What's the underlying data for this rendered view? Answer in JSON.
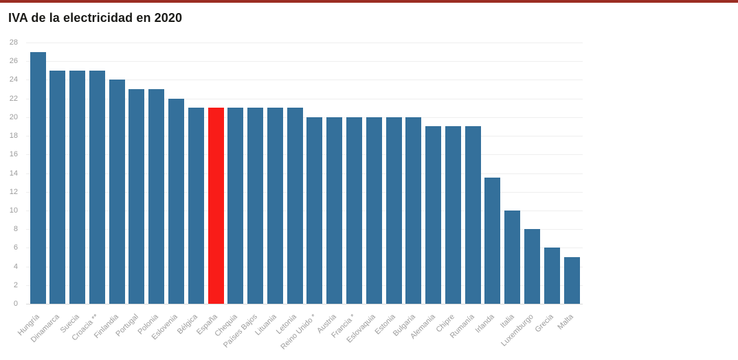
{
  "page": {
    "title": "IVA de la electricidad en 2020"
  },
  "colors": {
    "top_border": "#9b2d23",
    "bar": "#34709b",
    "highlight_bar": "#f91c18",
    "gridline": "#eeeeee",
    "zero_line": "#d9d9d9",
    "axis_label": "#9b9b9b",
    "title_text": "#1a1a17",
    "background": "#ffffff"
  },
  "chart_data": {
    "type": "bar",
    "title": "IVA de la electricidad en 2020",
    "xlabel": "",
    "ylabel": "",
    "ylim": [
      0,
      28
    ],
    "ytick_step": 2,
    "grid": "horizontal",
    "legend": "none",
    "highlighted_category": "España",
    "categories": [
      "Hungría",
      "Dinamarca",
      "Suecia",
      "Croacia **",
      "Finlandia",
      "Portugal",
      "Polonia",
      "Eslovenia",
      "Bélgica",
      "España",
      "Chequia",
      "Países Bajos",
      "Lituania",
      "Letonia",
      "Reino Unido *",
      "Austria",
      "Francia *",
      "Eslovaquia",
      "Estonia",
      "Bulgaria",
      "Alemania",
      "Chipre",
      "Rumanía",
      "Irlanda",
      "Italia",
      "Luxemburgo",
      "Grecia",
      "Malta"
    ],
    "values": [
      27,
      25,
      25,
      25,
      24,
      23,
      23,
      22,
      21,
      21,
      21,
      21,
      21,
      21,
      20,
      20,
      20,
      20,
      20,
      20,
      19,
      19,
      19,
      13.5,
      10,
      8,
      6,
      5
    ]
  }
}
